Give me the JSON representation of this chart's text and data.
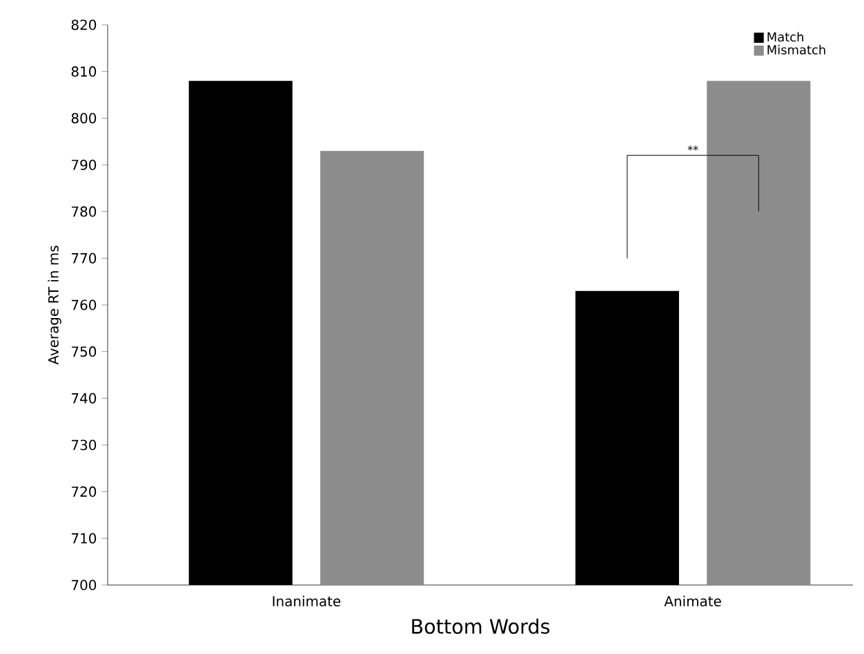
{
  "chart_data": {
    "type": "bar",
    "xlabel": "Bottom Words",
    "ylabel": "Average RT in ms",
    "categories": [
      "Inanimate",
      "Animate"
    ],
    "series": [
      {
        "name": "Match",
        "color": "#000000",
        "values": [
          808,
          763
        ]
      },
      {
        "name": "Mismatch",
        "color": "#8c8c8c",
        "values": [
          793,
          808
        ]
      }
    ],
    "ylim": [
      700,
      820
    ],
    "yticks": [
      700,
      710,
      720,
      730,
      740,
      750,
      760,
      770,
      780,
      790,
      800,
      810,
      820
    ],
    "legend": "top right",
    "annotations": [
      "**"
    ]
  }
}
